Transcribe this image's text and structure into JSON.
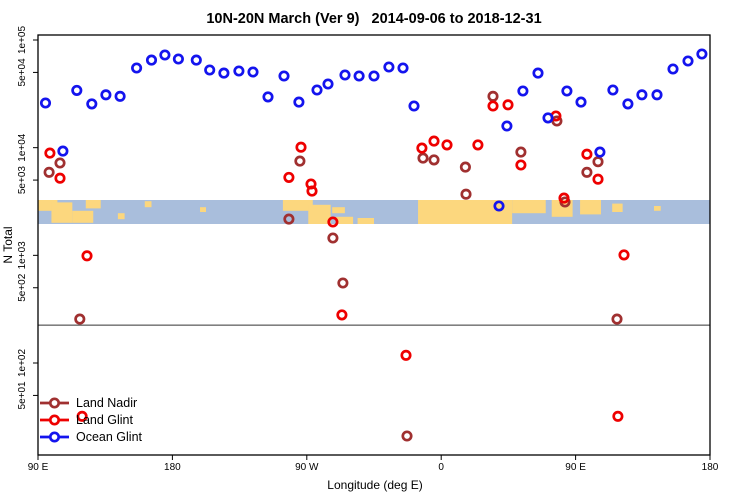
{
  "chart_data": {
    "type": "scatter",
    "title": "10N-20N March (Ver 9)   2014-09-06 to 2018-12-31",
    "xlabel": "Longitude (deg E)",
    "ylabel": "N Total",
    "x_axis": {
      "range": [
        90,
        540
      ],
      "ticks": [
        {
          "lon": 90,
          "label": "90 E"
        },
        {
          "lon": 180,
          "label": "180"
        },
        {
          "lon": 270,
          "label": "90 W"
        },
        {
          "lon": 360,
          "label": "0"
        },
        {
          "lon": 450,
          "label": "90 E"
        },
        {
          "lon": 540,
          "label": "180"
        }
      ]
    },
    "y_axis": {
      "scale": "log",
      "range_top": 100000,
      "range_bottom": 14,
      "ticks": [
        {
          "value": 100000,
          "label": "1e+05"
        },
        {
          "value": 50000,
          "label": "5e+04"
        },
        {
          "value": 10000,
          "label": "1e+04"
        },
        {
          "value": 5000,
          "label": "5e+03"
        },
        {
          "value": 1000,
          "label": "1e+03"
        },
        {
          "value": 500,
          "label": "5e+02"
        },
        {
          "value": 100,
          "label": "1e+02"
        },
        {
          "value": 50,
          "label": "5e+01"
        }
      ]
    },
    "reference_line_value": 225,
    "legend": {
      "position": "bottom-left"
    },
    "series": [
      {
        "name": "Land Nadir",
        "color": "#A03030",
        "points": [
          [
            97.4,
            5900
          ],
          [
            104.7,
            7200
          ],
          [
            118,
            256
          ],
          [
            258,
            2170
          ],
          [
            265.4,
            7500
          ],
          [
            287.5,
            1450
          ],
          [
            294.2,
            553
          ],
          [
            337.1,
            21
          ],
          [
            347.8,
            8000
          ],
          [
            355.2,
            7700
          ],
          [
            376.2,
            6600
          ],
          [
            376.6,
            3700
          ],
          [
            394.7,
            30000
          ],
          [
            413.4,
            9100
          ],
          [
            437.5,
            17700
          ],
          [
            442.9,
            3130
          ],
          [
            457.6,
            5900
          ],
          [
            465,
            7400
          ],
          [
            477.7,
            256
          ]
        ]
      },
      {
        "name": "Land Glint",
        "color": "#EE0000",
        "points": [
          [
            98,
            8900
          ],
          [
            104.7,
            5200
          ],
          [
            119.5,
            32
          ],
          [
            122.8,
            990
          ],
          [
            258,
            5300
          ],
          [
            266.1,
            10100
          ],
          [
            272.8,
            4600
          ],
          [
            273.5,
            3950
          ],
          [
            287.5,
            2040
          ],
          [
            293.5,
            280
          ],
          [
            336.4,
            118
          ],
          [
            347.1,
            9900
          ],
          [
            355.2,
            11500
          ],
          [
            363.9,
            10600
          ],
          [
            384.6,
            10600
          ],
          [
            394.7,
            24400
          ],
          [
            404.7,
            25000
          ],
          [
            413.4,
            6900
          ],
          [
            436.8,
            19700
          ],
          [
            442.2,
            3400
          ],
          [
            457.6,
            8700
          ],
          [
            465,
            5100
          ],
          [
            478.3,
            32
          ],
          [
            482.4,
            1010
          ]
        ]
      },
      {
        "name": "Ocean Glint",
        "color": "#1414EE",
        "points": [
          [
            95,
            26000
          ],
          [
            106.7,
            9300
          ],
          [
            116,
            34000
          ],
          [
            126,
            25500
          ],
          [
            135.5,
            31000
          ],
          [
            145,
            30000
          ],
          [
            156,
            55000
          ],
          [
            166,
            65000
          ],
          [
            175,
            72500
          ],
          [
            184,
            66600
          ],
          [
            196,
            65000
          ],
          [
            205,
            52600
          ],
          [
            214.5,
            49300
          ],
          [
            224.5,
            51500
          ],
          [
            234,
            50400
          ],
          [
            244,
            29600
          ],
          [
            254.7,
            46300
          ],
          [
            264.7,
            26500
          ],
          [
            276.8,
            34300
          ],
          [
            284.2,
            39000
          ],
          [
            295.6,
            47300
          ],
          [
            305,
            46300
          ],
          [
            315,
            46300
          ],
          [
            325,
            56100
          ],
          [
            334.4,
            55000
          ],
          [
            341.8,
            24400
          ],
          [
            398.7,
            2870
          ],
          [
            404,
            15900
          ],
          [
            414.7,
            33600
          ],
          [
            424.8,
            49300
          ],
          [
            431.5,
            18900
          ],
          [
            444.2,
            33600
          ],
          [
            453.6,
            26500
          ],
          [
            466.3,
            9100
          ],
          [
            475,
            34300
          ],
          [
            485,
            25500
          ],
          [
            494.4,
            31000
          ],
          [
            504.5,
            31000
          ],
          [
            515.2,
            53800
          ],
          [
            525.3,
            63800
          ],
          [
            534.6,
            74100
          ]
        ]
      }
    ],
    "map_strip": {
      "ocean_color": "#A9BEDC",
      "land_color": "#FCD77E",
      "land_segments_lon_frac": [
        [
          90,
          103,
          0,
          0.45
        ],
        [
          99,
          113,
          0.1,
          0.95
        ],
        [
          113,
          127,
          0.45,
          0.95
        ],
        [
          122,
          132,
          0,
          0.35
        ],
        [
          143.5,
          148,
          0.55,
          0.8
        ],
        [
          161.5,
          166,
          0.05,
          0.3
        ],
        [
          198.5,
          202.5,
          0.3,
          0.5
        ],
        [
          254,
          274,
          0,
          0.45
        ],
        [
          271,
          286,
          0.2,
          1
        ],
        [
          287,
          295.5,
          0.3,
          0.55
        ],
        [
          289.5,
          301,
          0.7,
          1
        ],
        [
          304,
          315,
          0.75,
          1
        ],
        [
          344.5,
          407.5,
          0,
          1
        ],
        [
          407.5,
          430,
          0,
          0.55
        ],
        [
          434,
          448,
          0,
          0.7
        ],
        [
          453,
          467,
          0,
          0.6
        ],
        [
          474.5,
          481.5,
          0.15,
          0.5
        ],
        [
          502.5,
          507,
          0.25,
          0.45
        ]
      ]
    }
  }
}
